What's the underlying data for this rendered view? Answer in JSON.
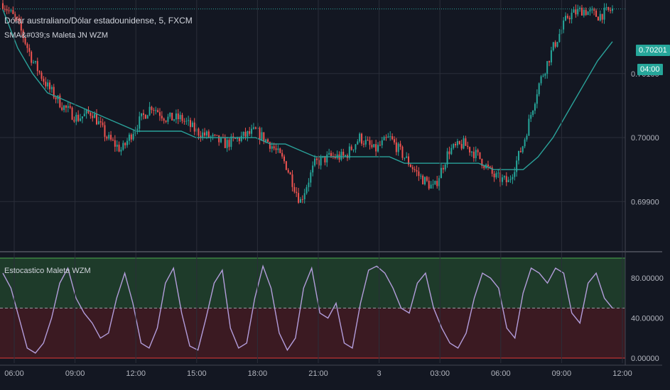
{
  "main": {
    "title": "Dólar australiano/Dólar estadounidense, 5, FXCM",
    "indicator": "SMA&#039;s Maleta JN WZM",
    "price_tag": "0.70201",
    "countdown_tag": "04:00"
  },
  "sub": {
    "title": "Estocastico Maleta WZM"
  },
  "colors": {
    "background": "#131722",
    "up_candle": "#26a69a",
    "down_candle": "#ef5350",
    "sma": "#2aa29a",
    "stoch_line": "#b39ddb",
    "overbought_zone": "#1e3b2a",
    "oversold_zone": "#3b1a22"
  },
  "chart_data": [
    {
      "type": "candlestick",
      "title": "Dólar australiano/Dólar estadounidense, 5, FXCM",
      "y_ticks": [
        "0.69900",
        "0.70000",
        "0.70100"
      ],
      "y_tick_values": [
        0.699,
        0.7,
        0.701
      ],
      "ylim": [
        0.69825,
        0.70215
      ],
      "last_price": 0.70201,
      "x_ticks": [
        "06:00",
        "09:00",
        "12:00",
        "15:00",
        "18:00",
        "21:00",
        "3",
        "03:00",
        "06:00",
        "09:00",
        "12:00"
      ],
      "close_path": [
        0.7021,
        0.7018,
        0.7012,
        0.7008,
        0.7005,
        0.7003,
        0.7004,
        0.7,
        0.6998,
        0.7002,
        0.7005,
        0.7003,
        0.7003,
        0.7001,
        0.7,
        0.6999,
        0.7,
        0.7001,
        0.6999,
        0.6996,
        0.699,
        0.6996,
        0.6997,
        0.6997,
        0.7,
        0.6998,
        0.7,
        0.6997,
        0.6994,
        0.6992,
        0.6998,
        0.6999,
        0.6997,
        0.6994,
        0.6993,
        0.6999,
        0.7008,
        0.7014,
        0.7019,
        0.702,
        0.7019,
        0.702
      ],
      "sma": {
        "name": "SMA",
        "values": [
          0.702,
          0.7014,
          0.701,
          0.7007,
          0.7006,
          0.7005,
          0.7004,
          0.7003,
          0.7002,
          0.7001,
          0.7001,
          0.7001,
          0.7001,
          0.7,
          0.7,
          0.7,
          0.7,
          0.7,
          0.6999,
          0.6999,
          0.6998,
          0.6997,
          0.6997,
          0.6997,
          0.6997,
          0.6997,
          0.6997,
          0.6996,
          0.6996,
          0.6996,
          0.6996,
          0.6996,
          0.6996,
          0.6995,
          0.6995,
          0.6995,
          0.6997,
          0.7,
          0.7004,
          0.7008,
          0.7012,
          0.7015
        ]
      }
    },
    {
      "type": "line",
      "title": "Estocastico Maleta WZM",
      "y_ticks": [
        "0.00000",
        "40.00000",
        "80.00000"
      ],
      "y_tick_values": [
        0,
        40,
        80
      ],
      "ylim": [
        -5,
        105
      ],
      "zones": {
        "upper_band": 100,
        "mid_line": 50,
        "lower_band": 0
      },
      "values": [
        85,
        70,
        40,
        10,
        5,
        15,
        40,
        75,
        90,
        60,
        45,
        35,
        20,
        25,
        60,
        85,
        55,
        15,
        10,
        30,
        75,
        90,
        45,
        12,
        8,
        40,
        75,
        88,
        30,
        10,
        15,
        60,
        92,
        70,
        25,
        8,
        20,
        70,
        90,
        45,
        40,
        55,
        15,
        10,
        55,
        88,
        92,
        85,
        70,
        50,
        45,
        75,
        85,
        50,
        30,
        15,
        10,
        25,
        60,
        85,
        80,
        70,
        30,
        20,
        65,
        90,
        85,
        75,
        90,
        85,
        45,
        35,
        75,
        85,
        60,
        50
      ]
    }
  ]
}
